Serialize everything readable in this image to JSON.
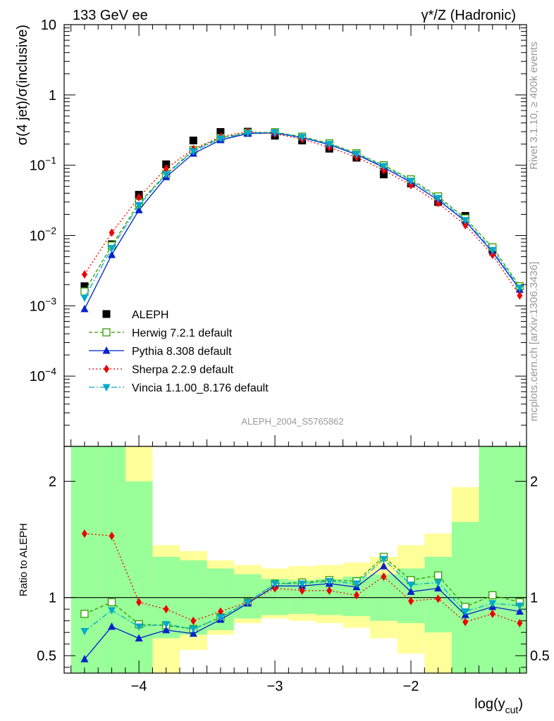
{
  "header": {
    "left": "133 GeV ee",
    "right": "γ*/Z (Hadronic)"
  },
  "side": {
    "rivet": "Rivet 3.1.10, ≥ 400k events",
    "mcplots": "mcplots.cern.ch [arXiv:1306.3436]"
  },
  "analysis_id": "ALEPH_2004_S5765862",
  "chart_data": [
    {
      "type": "line",
      "ylabel": "σ(4 jet)/σ(inclusive)",
      "yscale": "log",
      "ylim": [
        1e-05,
        10
      ],
      "xlim": [
        -4.55,
        -1.15
      ],
      "y_tick_labels": [
        "10",
        "1",
        "10^-1",
        "10^-2",
        "10^-3",
        "10^-4"
      ],
      "x": [
        -4.4,
        -4.2,
        -4.0,
        -3.8,
        -3.6,
        -3.4,
        -3.2,
        -3.0,
        -2.8,
        -2.6,
        -2.4,
        -2.2,
        -2.0,
        -1.8,
        -1.6,
        -1.4,
        -1.2
      ],
      "legend_position": "bottom-left",
      "series": [
        {
          "name": "ALEPH",
          "color": "#000000",
          "marker": "square",
          "values": [
            0.0019,
            0.0075,
            0.038,
            0.103,
            0.225,
            0.297,
            0.3,
            0.263,
            0.225,
            0.172,
            0.128,
            0.074,
            0.055,
            0.03,
            0.019,
            0.0063,
            0.0019
          ]
        },
        {
          "name": "Herwig 7.2.1 default",
          "color": "#339900",
          "marker": "open-square",
          "dash": "5,3",
          "values": [
            0.0016,
            0.0072,
            0.029,
            0.075,
            0.165,
            0.245,
            0.29,
            0.295,
            0.255,
            0.205,
            0.148,
            0.1,
            0.063,
            0.036,
            0.0175,
            0.0068,
            0.0019
          ]
        },
        {
          "name": "Pythia 8.308 default",
          "color": "#0022cc",
          "marker": "triangle-up",
          "dash": "",
          "values": [
            0.0009,
            0.0053,
            0.023,
            0.068,
            0.147,
            0.228,
            0.282,
            0.288,
            0.247,
            0.196,
            0.142,
            0.093,
            0.057,
            0.032,
            0.016,
            0.0058,
            0.0017
          ]
        },
        {
          "name": "Sherpa 2.2.9 default",
          "color": "#ee0000",
          "marker": "diamond",
          "dash": "2,3",
          "values": [
            0.0028,
            0.011,
            0.035,
            0.09,
            0.17,
            0.255,
            0.3,
            0.28,
            0.235,
            0.18,
            0.13,
            0.085,
            0.052,
            0.029,
            0.014,
            0.0053,
            0.0014
          ]
        },
        {
          "name": "Vincia 1.1.00_8.176 default",
          "color": "#00aacc",
          "marker": "triangle-down",
          "dash": "8,3,2,3",
          "values": [
            0.0013,
            0.0066,
            0.027,
            0.074,
            0.158,
            0.24,
            0.287,
            0.292,
            0.251,
            0.2,
            0.145,
            0.097,
            0.06,
            0.034,
            0.0165,
            0.0062,
            0.0018
          ]
        }
      ]
    },
    {
      "type": "line",
      "ylabel": "Ratio to ALEPH",
      "ylim": [
        0.35,
        2.3
      ],
      "y_ticks": [
        0.5,
        1,
        2
      ],
      "y_tick_labels": [
        "0.5",
        "1",
        "2"
      ],
      "xlim": [
        -4.55,
        -1.15
      ],
      "xlabel": "log(y_cut)",
      "x_ticks": [
        -4,
        -3,
        -2
      ],
      "x_tick_labels": [
        "−4",
        "−3",
        "−2"
      ],
      "x": [
        -4.4,
        -4.2,
        -4.0,
        -3.8,
        -3.6,
        -3.4,
        -3.2,
        -3.0,
        -2.8,
        -2.6,
        -2.4,
        -2.2,
        -2.0,
        -1.8,
        -1.6,
        -1.4,
        -1.2
      ],
      "bin_edges": [
        -4.5,
        -4.3,
        -4.1,
        -3.9,
        -3.7,
        -3.5,
        -3.3,
        -3.1,
        -2.9,
        -2.7,
        -2.5,
        -2.3,
        -2.1,
        -1.9,
        -1.7,
        -1.5,
        -1.3,
        -1.15
      ],
      "band_inner_lo": [
        0.35,
        0.35,
        0.35,
        0.65,
        0.68,
        0.72,
        0.82,
        0.85,
        0.86,
        0.85,
        0.84,
        0.8,
        0.78,
        0.7,
        0.35,
        0.35,
        0.35
      ],
      "band_inner_hi": [
        2.3,
        2.3,
        2.0,
        1.35,
        1.32,
        1.25,
        1.2,
        1.16,
        1.15,
        1.16,
        1.18,
        1.2,
        1.25,
        1.35,
        1.65,
        2.3,
        2.3
      ],
      "band_outer_lo": [
        0.35,
        0.35,
        0.35,
        0.35,
        0.55,
        0.68,
        0.78,
        0.82,
        0.8,
        0.78,
        0.74,
        0.65,
        0.52,
        0.35,
        0.35,
        0.35,
        0.35
      ],
      "band_outer_hi": [
        2.3,
        2.3,
        2.3,
        1.45,
        1.4,
        1.32,
        1.28,
        1.25,
        1.27,
        1.28,
        1.3,
        1.35,
        1.45,
        1.55,
        1.95,
        2.3,
        2.3
      ],
      "series": [
        {
          "name": "Herwig 7.2.1 default",
          "color": "#339900",
          "marker": "open-square",
          "dash": "5,3",
          "values": [
            0.86,
            0.96,
            0.77,
            0.76,
            0.73,
            0.83,
            0.96,
            1.12,
            1.13,
            1.15,
            1.14,
            1.35,
            1.15,
            1.19,
            0.92,
            1.02,
            0.96
          ]
        },
        {
          "name": "Pythia 8.308 default",
          "color": "#0022cc",
          "marker": "triangle-up",
          "dash": "",
          "values": [
            0.47,
            0.75,
            0.65,
            0.72,
            0.69,
            0.81,
            0.95,
            1.1,
            1.1,
            1.12,
            1.09,
            1.27,
            1.05,
            1.08,
            0.85,
            0.92,
            0.88
          ]
        },
        {
          "name": "Sherpa 2.2.9 default",
          "color": "#ee0000",
          "marker": "diamond",
          "dash": "2,3",
          "values": [
            1.55,
            1.53,
            0.96,
            0.9,
            0.8,
            0.88,
            0.96,
            1.08,
            1.06,
            1.06,
            1.02,
            1.18,
            0.97,
            0.99,
            0.79,
            0.86,
            0.78
          ]
        },
        {
          "name": "Vincia 1.1.00_8.176 default",
          "color": "#00aacc",
          "marker": "triangle-down",
          "dash": "8,3,2,3",
          "values": [
            0.71,
            0.89,
            0.75,
            0.77,
            0.73,
            0.83,
            0.96,
            1.12,
            1.12,
            1.14,
            1.12,
            1.33,
            1.11,
            1.13,
            0.88,
            0.95,
            0.93
          ]
        }
      ]
    }
  ]
}
